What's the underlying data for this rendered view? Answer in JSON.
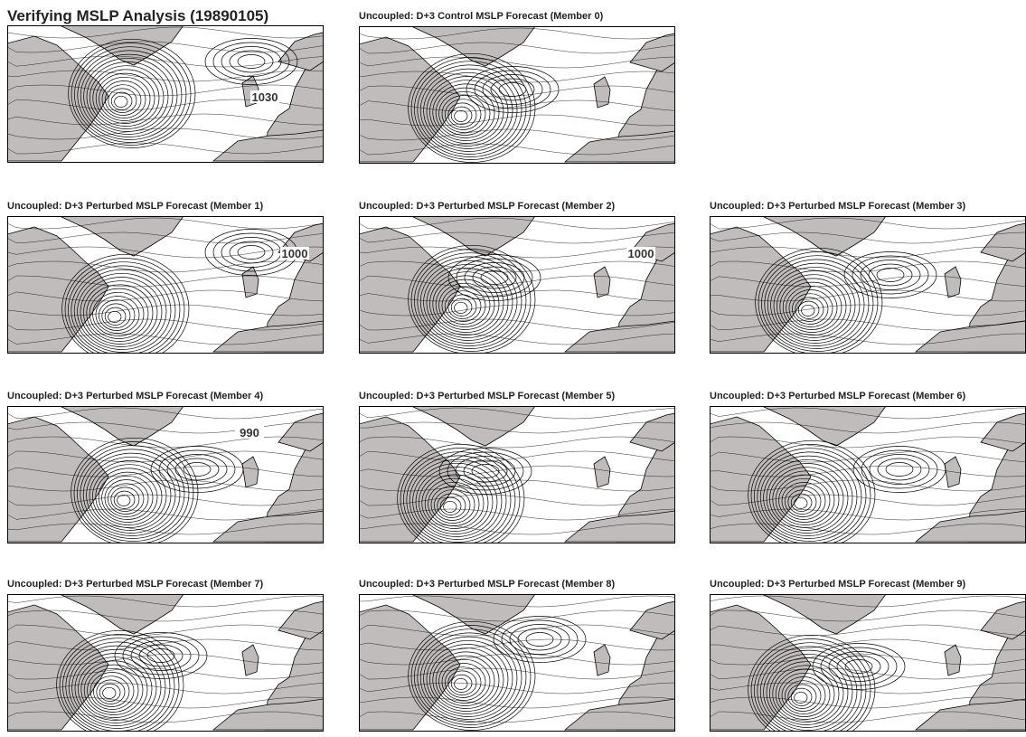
{
  "panels": [
    {
      "title": "Verifying MSLP Analysis (19890105)",
      "contour_labels": [
        "1030"
      ]
    },
    {
      "title": "Uncoupled: D+3 Control MSLP Forecast (Member 0)",
      "contour_labels": []
    },
    {
      "title": "Uncoupled: D+3 Perturbed MSLP Forecast (Member 1)",
      "contour_labels": [
        "1000"
      ]
    },
    {
      "title": "Uncoupled: D+3 Perturbed MSLP Forecast (Member 2)",
      "contour_labels": [
        "1000"
      ]
    },
    {
      "title": "Uncoupled: D+3 Perturbed MSLP Forecast (Member 3)",
      "contour_labels": []
    },
    {
      "title": "Uncoupled: D+3 Perturbed MSLP Forecast (Member 4)",
      "contour_labels": [
        "990"
      ]
    },
    {
      "title": "Uncoupled: D+3 Perturbed MSLP Forecast (Member 5)",
      "contour_labels": []
    },
    {
      "title": "Uncoupled: D+3 Perturbed MSLP Forecast (Member 6)",
      "contour_labels": []
    },
    {
      "title": "Uncoupled: D+3 Perturbed MSLP Forecast (Member 7)",
      "contour_labels": []
    },
    {
      "title": "Uncoupled: D+3 Perturbed MSLP Forecast (Member 8)",
      "contour_labels": []
    },
    {
      "title": "Uncoupled: D+3 Perturbed MSLP Forecast (Member 9)",
      "contour_labels": []
    }
  ]
}
